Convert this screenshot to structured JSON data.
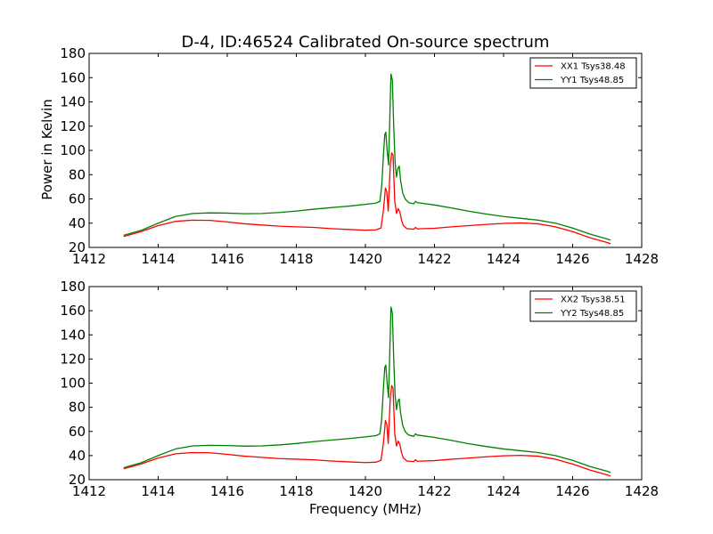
{
  "figure": {
    "title": "D-4, ID:46524 Calibrated On-source spectrum",
    "xlabel": "Frequency (MHz)",
    "ylabel_top": "Power in Kelvin"
  },
  "chart_data": [
    {
      "type": "line",
      "title": "D-4, ID:46524 Calibrated On-source spectrum",
      "xlabel": "",
      "ylabel": "Power in Kelvin",
      "xlim": [
        1412,
        1428
      ],
      "ylim": [
        20,
        180
      ],
      "xticks": [
        1412,
        1414,
        1416,
        1418,
        1420,
        1422,
        1424,
        1426,
        1428
      ],
      "yticks": [
        20,
        40,
        60,
        80,
        100,
        120,
        140,
        160,
        180
      ],
      "legend": "top-right",
      "series": [
        {
          "name": "XX1 Tsys38.48",
          "color": "#ff0000",
          "points": [
            [
              1413.0,
              29
            ],
            [
              1413.5,
              33
            ],
            [
              1414.0,
              38
            ],
            [
              1414.5,
              41.5
            ],
            [
              1415.0,
              42.5
            ],
            [
              1415.5,
              42.3
            ],
            [
              1416.0,
              41
            ],
            [
              1416.5,
              39.5
            ],
            [
              1417.0,
              38.5
            ],
            [
              1417.5,
              37.5
            ],
            [
              1418.0,
              37
            ],
            [
              1418.5,
              36.5
            ],
            [
              1419.0,
              35.5
            ],
            [
              1419.5,
              34.8
            ],
            [
              1420.0,
              34.2
            ],
            [
              1420.3,
              34.5
            ],
            [
              1420.45,
              36
            ],
            [
              1420.52,
              50
            ],
            [
              1420.58,
              69
            ],
            [
              1420.62,
              66
            ],
            [
              1420.66,
              50
            ],
            [
              1420.72,
              88
            ],
            [
              1420.76,
              98
            ],
            [
              1420.8,
              96
            ],
            [
              1420.85,
              58
            ],
            [
              1420.9,
              48
            ],
            [
              1420.95,
              52
            ],
            [
              1421.0,
              49
            ],
            [
              1421.05,
              42
            ],
            [
              1421.1,
              38
            ],
            [
              1421.2,
              35.5
            ],
            [
              1421.4,
              35
            ],
            [
              1421.45,
              36.5
            ],
            [
              1421.5,
              35.3
            ],
            [
              1422.0,
              35.8
            ],
            [
              1422.5,
              37
            ],
            [
              1423.0,
              38
            ],
            [
              1423.5,
              39
            ],
            [
              1424.0,
              39.8
            ],
            [
              1424.5,
              40.2
            ],
            [
              1425.0,
              39.5
            ],
            [
              1425.5,
              37
            ],
            [
              1426.0,
              33
            ],
            [
              1426.5,
              28
            ],
            [
              1427.0,
              24
            ],
            [
              1427.1,
              23
            ]
          ]
        },
        {
          "name": "YY1 Tsys48.85",
          "color": "#008000",
          "points": [
            [
              1413.0,
              30
            ],
            [
              1413.5,
              34
            ],
            [
              1414.0,
              40
            ],
            [
              1414.5,
              45.5
            ],
            [
              1415.0,
              48
            ],
            [
              1415.5,
              48.5
            ],
            [
              1416.0,
              48.3
            ],
            [
              1416.5,
              47.8
            ],
            [
              1417.0,
              48
            ],
            [
              1417.5,
              48.8
            ],
            [
              1418.0,
              50
            ],
            [
              1418.5,
              51.5
            ],
            [
              1419.0,
              52.8
            ],
            [
              1419.5,
              54
            ],
            [
              1420.0,
              55.5
            ],
            [
              1420.3,
              56.5
            ],
            [
              1420.42,
              58
            ],
            [
              1420.47,
              70
            ],
            [
              1420.52,
              95
            ],
            [
              1420.56,
              113
            ],
            [
              1420.59,
              115
            ],
            [
              1420.63,
              100
            ],
            [
              1420.67,
              88
            ],
            [
              1420.7,
              120
            ],
            [
              1420.74,
              163
            ],
            [
              1420.78,
              158
            ],
            [
              1420.82,
              120
            ],
            [
              1420.86,
              90
            ],
            [
              1420.9,
              78
            ],
            [
              1420.94,
              85
            ],
            [
              1420.98,
              87
            ],
            [
              1421.02,
              75
            ],
            [
              1421.08,
              65
            ],
            [
              1421.15,
              60
            ],
            [
              1421.25,
              57
            ],
            [
              1421.4,
              56
            ],
            [
              1421.45,
              58
            ],
            [
              1421.5,
              57
            ],
            [
              1422.0,
              55
            ],
            [
              1422.5,
              52.5
            ],
            [
              1423.0,
              49.8
            ],
            [
              1423.5,
              47.5
            ],
            [
              1424.0,
              45.5
            ],
            [
              1424.5,
              44
            ],
            [
              1425.0,
              42.5
            ],
            [
              1425.5,
              40
            ],
            [
              1426.0,
              36
            ],
            [
              1426.5,
              31
            ],
            [
              1427.0,
              27
            ],
            [
              1427.1,
              26
            ]
          ]
        }
      ]
    },
    {
      "type": "line",
      "title": "",
      "xlabel": "Frequency (MHz)",
      "ylabel": "",
      "xlim": [
        1412,
        1428
      ],
      "ylim": [
        20,
        180
      ],
      "xticks": [
        1412,
        1414,
        1416,
        1418,
        1420,
        1422,
        1424,
        1426,
        1428
      ],
      "yticks": [
        20,
        40,
        60,
        80,
        100,
        120,
        140,
        160,
        180
      ],
      "legend": "top-right",
      "series": [
        {
          "name": "XX2 Tsys38.51",
          "color": "#ff0000",
          "points": [
            [
              1413.0,
              29
            ],
            [
              1413.5,
              33
            ],
            [
              1414.0,
              38
            ],
            [
              1414.5,
              41.5
            ],
            [
              1415.0,
              42.5
            ],
            [
              1415.5,
              42.3
            ],
            [
              1416.0,
              41
            ],
            [
              1416.5,
              39.5
            ],
            [
              1417.0,
              38.5
            ],
            [
              1417.5,
              37.5
            ],
            [
              1418.0,
              37
            ],
            [
              1418.5,
              36.5
            ],
            [
              1419.0,
              35.5
            ],
            [
              1419.5,
              34.8
            ],
            [
              1420.0,
              34.2
            ],
            [
              1420.3,
              34.5
            ],
            [
              1420.45,
              36
            ],
            [
              1420.52,
              50
            ],
            [
              1420.58,
              69
            ],
            [
              1420.62,
              66
            ],
            [
              1420.66,
              50
            ],
            [
              1420.72,
              88
            ],
            [
              1420.76,
              98
            ],
            [
              1420.8,
              96
            ],
            [
              1420.85,
              58
            ],
            [
              1420.9,
              48
            ],
            [
              1420.95,
              52
            ],
            [
              1421.0,
              49
            ],
            [
              1421.05,
              42
            ],
            [
              1421.1,
              38
            ],
            [
              1421.2,
              35.5
            ],
            [
              1421.4,
              35
            ],
            [
              1421.45,
              36.5
            ],
            [
              1421.5,
              35.3
            ],
            [
              1422.0,
              35.8
            ],
            [
              1422.5,
              37
            ],
            [
              1423.0,
              38
            ],
            [
              1423.5,
              39
            ],
            [
              1424.0,
              39.8
            ],
            [
              1424.5,
              40.2
            ],
            [
              1425.0,
              39.5
            ],
            [
              1425.5,
              37
            ],
            [
              1426.0,
              33
            ],
            [
              1426.5,
              28
            ],
            [
              1427.0,
              24
            ],
            [
              1427.1,
              23
            ]
          ]
        },
        {
          "name": "YY2 Tsys48.85",
          "color": "#008000",
          "points": [
            [
              1413.0,
              30
            ],
            [
              1413.5,
              34
            ],
            [
              1414.0,
              40
            ],
            [
              1414.5,
              45.5
            ],
            [
              1415.0,
              48
            ],
            [
              1415.5,
              48.5
            ],
            [
              1416.0,
              48.3
            ],
            [
              1416.5,
              47.8
            ],
            [
              1417.0,
              48
            ],
            [
              1417.5,
              48.8
            ],
            [
              1418.0,
              50
            ],
            [
              1418.5,
              51.5
            ],
            [
              1419.0,
              52.8
            ],
            [
              1419.5,
              54
            ],
            [
              1420.0,
              55.5
            ],
            [
              1420.3,
              56.5
            ],
            [
              1420.42,
              58
            ],
            [
              1420.47,
              70
            ],
            [
              1420.52,
              95
            ],
            [
              1420.56,
              113
            ],
            [
              1420.59,
              115
            ],
            [
              1420.63,
              100
            ],
            [
              1420.67,
              88
            ],
            [
              1420.7,
              120
            ],
            [
              1420.74,
              163
            ],
            [
              1420.78,
              158
            ],
            [
              1420.82,
              120
            ],
            [
              1420.86,
              90
            ],
            [
              1420.9,
              78
            ],
            [
              1420.94,
              85
            ],
            [
              1420.98,
              87
            ],
            [
              1421.02,
              75
            ],
            [
              1421.08,
              65
            ],
            [
              1421.15,
              60
            ],
            [
              1421.25,
              57
            ],
            [
              1421.4,
              56
            ],
            [
              1421.45,
              58
            ],
            [
              1421.5,
              57
            ],
            [
              1422.0,
              55
            ],
            [
              1422.5,
              52.5
            ],
            [
              1423.0,
              49.8
            ],
            [
              1423.5,
              47.5
            ],
            [
              1424.0,
              45.5
            ],
            [
              1424.5,
              44
            ],
            [
              1425.0,
              42.5
            ],
            [
              1425.5,
              40
            ],
            [
              1426.0,
              36
            ],
            [
              1426.5,
              31
            ],
            [
              1427.0,
              27
            ],
            [
              1427.1,
              26
            ]
          ]
        }
      ]
    }
  ]
}
